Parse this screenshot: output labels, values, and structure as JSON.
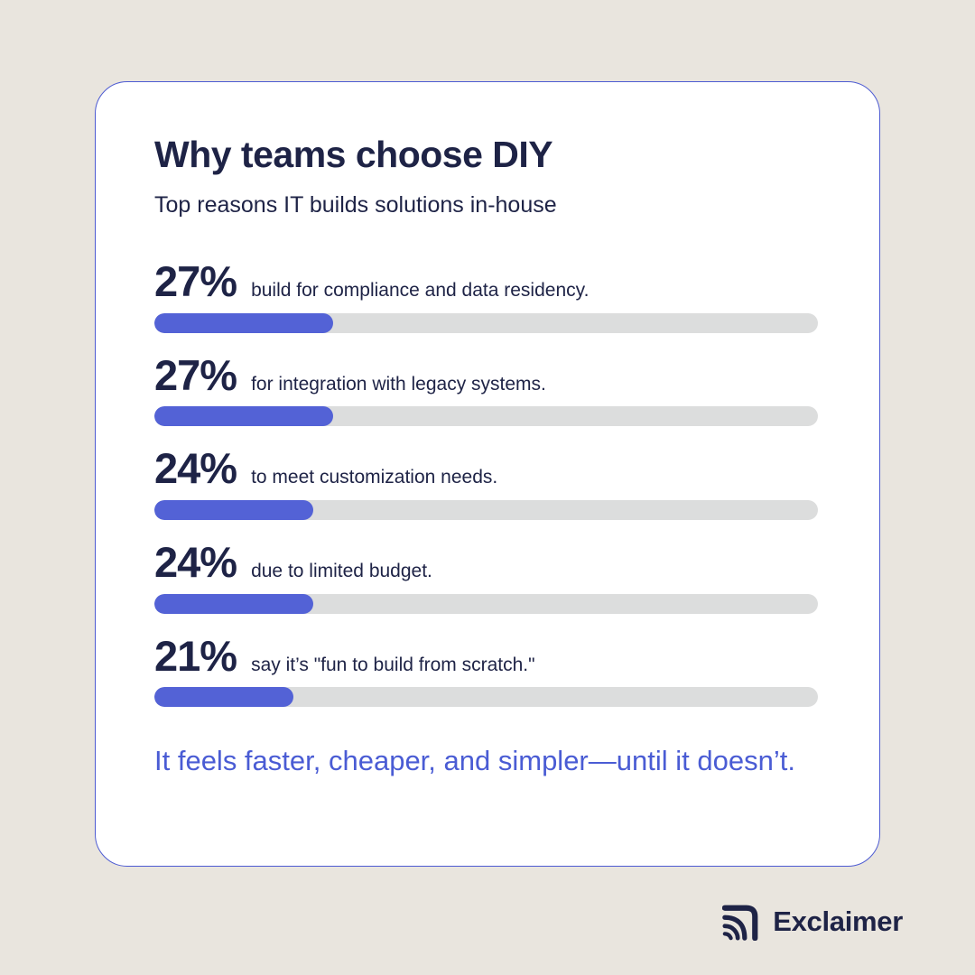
{
  "colors": {
    "bg": "#e9e5de",
    "card-bg": "#ffffff",
    "card-border": "#4d5bd2",
    "navy": "#1e2346",
    "accent": "#5362d6",
    "track": "#dcdddd",
    "footer-blue": "#4a5cd4"
  },
  "card": {
    "title": "Why teams choose DIY",
    "subtitle": "Top reasons IT builds solutions in-house",
    "rows": [
      {
        "percent": "27%",
        "value": 27,
        "label": "build for compliance and data residency."
      },
      {
        "percent": "27%",
        "value": 27,
        "label": "for integration with legacy systems."
      },
      {
        "percent": "24%",
        "value": 24,
        "label": "to meet customization needs."
      },
      {
        "percent": "24%",
        "value": 24,
        "label": "due to limited budget."
      },
      {
        "percent": "21%",
        "value": 21,
        "label": "say it’s \"fun to build from scratch.\""
      }
    ],
    "footer": "It feels faster, cheaper, and simpler—until it doesn’t."
  },
  "brand": {
    "name": "Exclaimer",
    "icon": "exclaimer-logo-icon"
  },
  "chart_data": {
    "type": "bar",
    "title": "Why teams choose DIY",
    "subtitle": "Top reasons IT builds solutions in-house",
    "categories": [
      "build for compliance and data residency.",
      "for integration with legacy systems.",
      "to meet customization needs.",
      "due to limited budget.",
      "say it’s \"fun to build from scratch.\""
    ],
    "values": [
      27,
      27,
      24,
      24,
      21
    ],
    "value_labels": [
      "27%",
      "27%",
      "24%",
      "24%",
      "21%"
    ],
    "xlabel": "",
    "ylabel": "",
    "xlim": [
      0,
      100
    ],
    "grid": false,
    "legend": false,
    "orientation": "horizontal",
    "annotation": "It feels faster, cheaper, and simpler—until it doesn’t."
  }
}
